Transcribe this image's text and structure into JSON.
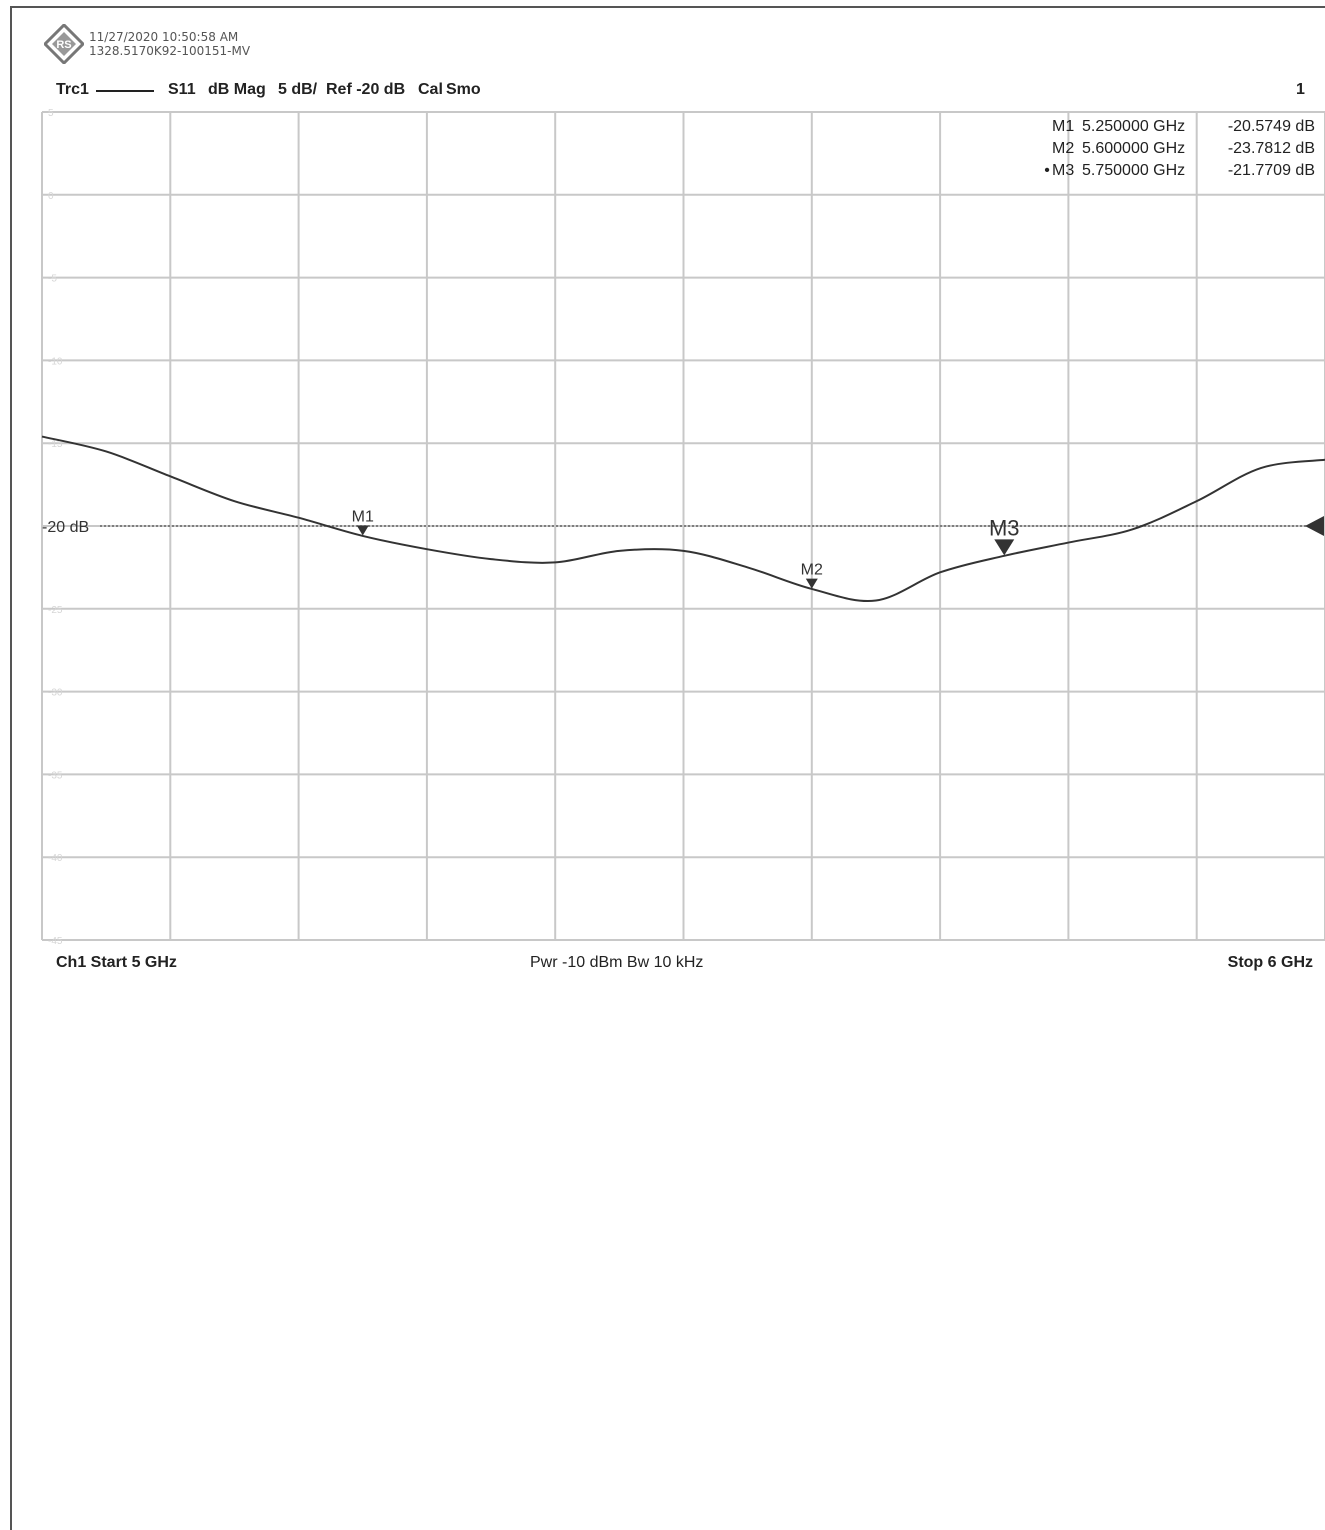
{
  "header": {
    "timestamp": "11/27/2020 10:50:58 AM",
    "instrument_id": "1328.5170K92-100151-MV"
  },
  "trace_line": {
    "trace": "Trc1",
    "param": "S11",
    "format": "dB Mag",
    "scale": "5 dB/",
    "ref": "Ref -20 dB",
    "cal": "Cal",
    "smo": "Smo",
    "channel_index": "1"
  },
  "markers": [
    {
      "active": false,
      "name": "M1",
      "freq": "5.250000 GHz",
      "value": "-20.5749 dB"
    },
    {
      "active": false,
      "name": "M2",
      "freq": "5.600000 GHz",
      "value": "-23.7812 dB"
    },
    {
      "active": true,
      "name": "M3",
      "freq": "5.750000 GHz",
      "value": "-21.7709 dB"
    }
  ],
  "footer": {
    "start": "Ch1  Start  5 GHz",
    "center": "Pwr  -10 dBm  Bw  10 kHz",
    "stop": "Stop  6 GHz"
  },
  "colors": {
    "trace": "#333333",
    "grid": "#c8c8c8",
    "ref_line": "#666666",
    "axis_label": "#d6d6d6"
  },
  "chart_data": {
    "type": "line",
    "xlabel": "",
    "ylabel": "",
    "xlim": [
      5.0,
      6.0
    ],
    "ylim": [
      -45,
      5
    ],
    "x_unit": "GHz",
    "y_unit": "dB",
    "grid": true,
    "y_ticks": [
      "5",
      "0",
      "-5",
      "-10",
      "-15",
      "-20",
      "-25",
      "-30",
      "-35",
      "-40",
      "-45"
    ],
    "ref_label": "-20 dB",
    "ref_value": -20,
    "series": [
      {
        "name": "S11",
        "x": [
          5.0,
          5.05,
          5.1,
          5.15,
          5.2,
          5.25,
          5.3,
          5.35,
          5.4,
          5.45,
          5.5,
          5.55,
          5.6,
          5.65,
          5.7,
          5.75,
          5.8,
          5.85,
          5.9,
          5.95,
          6.0
        ],
        "values": [
          -14.6,
          -15.5,
          -17.0,
          -18.5,
          -19.5,
          -20.6,
          -21.4,
          -22.0,
          -22.2,
          -21.5,
          -21.5,
          -22.5,
          -23.8,
          -24.5,
          -22.8,
          -21.8,
          -21.0,
          -20.2,
          -18.5,
          -16.5,
          -16.0
        ]
      }
    ],
    "markers": [
      {
        "name": "M1",
        "x": 5.25,
        "y": -20.5749
      },
      {
        "name": "M2",
        "x": 5.6,
        "y": -23.7812
      },
      {
        "name": "M3",
        "x": 5.75,
        "y": -21.7709
      }
    ]
  }
}
